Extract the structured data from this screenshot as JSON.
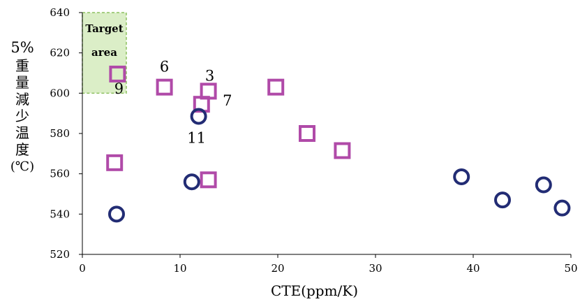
{
  "chart_data": {
    "type": "scatter",
    "xlabel": "CTE(ppm/K)",
    "ylabel": {
      "top": "5%",
      "chars": [
        "重",
        "量",
        "減",
        "少",
        "温",
        "度"
      ],
      "unit": "(℃)"
    },
    "xlim": [
      0,
      50
    ],
    "ylim": [
      520,
      640
    ],
    "x_ticks": [
      0,
      10,
      20,
      30,
      40,
      50
    ],
    "y_ticks": [
      520,
      540,
      560,
      580,
      600,
      620,
      640
    ],
    "target_area": {
      "label_line1": "Target",
      "label_line2": "area",
      "x_range": [
        0,
        4.5
      ],
      "y_range": [
        600,
        640
      ],
      "fill": "#cfe8b4",
      "stroke": "#8dc060"
    },
    "series": [
      {
        "marker": "square",
        "color": "#b04aa8",
        "points": [
          {
            "x": 3.6,
            "y": 609.5,
            "label": "9"
          },
          {
            "x": 8.4,
            "y": 603,
            "label": "6"
          },
          {
            "x": 12.9,
            "y": 601,
            "label": "3"
          },
          {
            "x": 12.2,
            "y": 594.5,
            "label": "7"
          },
          {
            "x": 19.8,
            "y": 603,
            "label": ""
          },
          {
            "x": 23.0,
            "y": 580,
            "label": ""
          },
          {
            "x": 26.6,
            "y": 571.5,
            "label": ""
          },
          {
            "x": 3.3,
            "y": 565.5,
            "label": ""
          },
          {
            "x": 12.9,
            "y": 557,
            "label": ""
          }
        ]
      },
      {
        "marker": "circle",
        "color": "#222c74",
        "points": [
          {
            "x": 11.9,
            "y": 588.5,
            "label": "11"
          },
          {
            "x": 11.2,
            "y": 556,
            "label": ""
          },
          {
            "x": 3.5,
            "y": 540,
            "label": ""
          },
          {
            "x": 38.8,
            "y": 558.5,
            "label": ""
          },
          {
            "x": 43.0,
            "y": 547,
            "label": ""
          },
          {
            "x": 47.2,
            "y": 554.5,
            "label": ""
          },
          {
            "x": 49.1,
            "y": 543,
            "label": ""
          }
        ]
      }
    ]
  }
}
